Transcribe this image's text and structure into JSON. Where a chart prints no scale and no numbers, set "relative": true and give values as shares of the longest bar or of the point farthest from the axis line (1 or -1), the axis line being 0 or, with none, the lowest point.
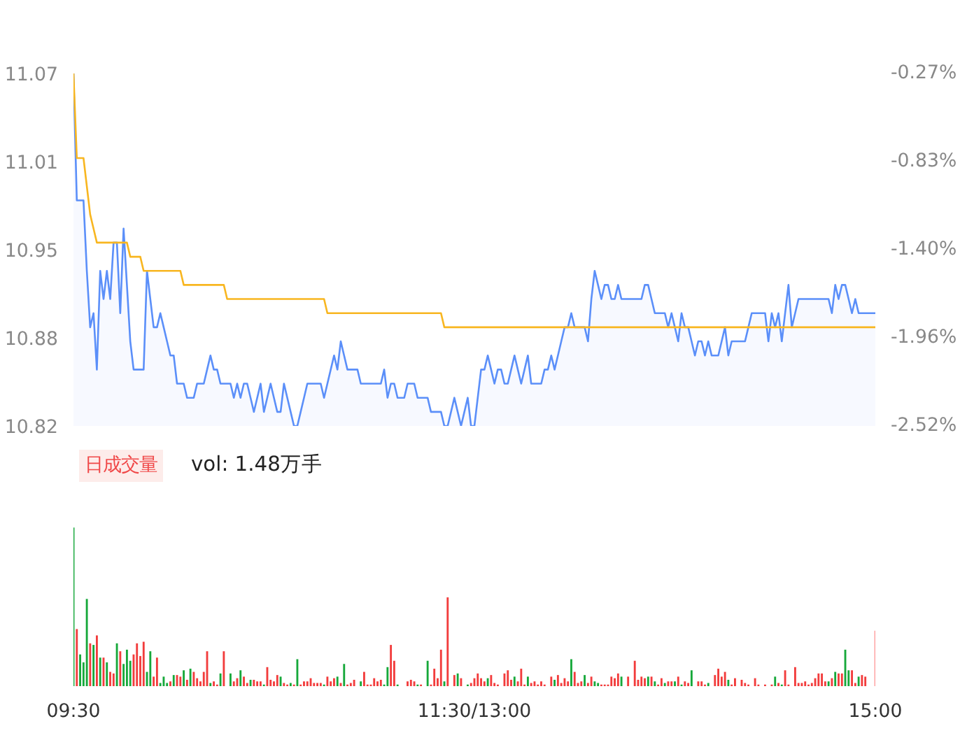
{
  "chart_data": [
    {
      "type": "area",
      "ylim": [
        10.82,
        11.07
      ],
      "categories": [
        null,
        null,
        null,
        null,
        null,
        null,
        null,
        null,
        null,
        null,
        null,
        null,
        null,
        null,
        null,
        null,
        null,
        null,
        null,
        null,
        null,
        null,
        null,
        null,
        null,
        null,
        null,
        null,
        null,
        null,
        null,
        null,
        null,
        null,
        null,
        null,
        null,
        null,
        null,
        null,
        null,
        null,
        null,
        null,
        null,
        null,
        null,
        null,
        null,
        null,
        null,
        null,
        null,
        null,
        null,
        null,
        null,
        null,
        null,
        null,
        null,
        null,
        null,
        null,
        null,
        null,
        null,
        null,
        null,
        null,
        null,
        null,
        null,
        null,
        null,
        null,
        null,
        null,
        null,
        null,
        null,
        null,
        null,
        null,
        null,
        null,
        null,
        null,
        null,
        null,
        null,
        null,
        null,
        null,
        null,
        null,
        null,
        null,
        null,
        null,
        null,
        null,
        null,
        null,
        null,
        null,
        null,
        null,
        null,
        null,
        null,
        null,
        null,
        null,
        null,
        null,
        null,
        null,
        null,
        null,
        null,
        null,
        null,
        null,
        null,
        null,
        null,
        null,
        null,
        null,
        null,
        null,
        null,
        null,
        null,
        null,
        null,
        null,
        null,
        null,
        null,
        null,
        null,
        null,
        null,
        null,
        null,
        null,
        null,
        null,
        null,
        null,
        null,
        null,
        null,
        null,
        null,
        null,
        null,
        null,
        null,
        null,
        null,
        null,
        null,
        null,
        null,
        null,
        null,
        null,
        null,
        null,
        null,
        null,
        null,
        null,
        null,
        null,
        null,
        null,
        null,
        null,
        null,
        null,
        null,
        null,
        null,
        null,
        null,
        null,
        null,
        null,
        null,
        null,
        null,
        null,
        null,
        null,
        null,
        null,
        null,
        null,
        null,
        null,
        null,
        null,
        null,
        null,
        null,
        null,
        null,
        null,
        null,
        null,
        null,
        null,
        null,
        null,
        null,
        null,
        null,
        null,
        null,
        null,
        null,
        null,
        null,
        null,
        null,
        null,
        null,
        null,
        null,
        null,
        null,
        null,
        null,
        null,
        null,
        null,
        null
      ],
      "yticks": [
        11.07,
        {
          "value": 11.0075,
          "label": "11.01"
        },
        {
          "value": 10.945,
          "label": "10.95"
        },
        {
          "value": 10.8825,
          "label": "10.88"
        },
        10.82
      ],
      "y2lim": [
        -2.52,
        -0.27
      ],
      "y2ticks": [
        {
          "value": -0.27,
          "label": "-0.27%"
        },
        {
          "value": -0.8325,
          "label": "-0.83%"
        },
        {
          "value": -1.395,
          "label": "-1.40%"
        },
        {
          "value": -1.9575,
          "label": "-1.96%"
        },
        {
          "value": -2.52,
          "label": "-2.52%"
        }
      ],
      "series": [
        {
          "type": "area",
          "color": "#5b8ff9",
          "values": [
            11.07,
            10.98,
            10.98,
            10.98,
            10.93,
            10.89,
            10.9,
            10.86,
            10.93,
            10.91,
            10.93,
            10.91,
            10.95,
            10.95,
            10.9,
            10.96,
            10.92,
            10.88,
            10.86,
            10.86,
            10.86,
            10.86,
            10.93,
            10.91,
            10.89,
            10.89,
            10.9,
            10.89,
            10.88,
            10.87,
            10.87,
            10.85,
            10.85,
            10.85,
            10.84,
            10.84,
            10.84,
            10.85,
            10.85,
            10.85,
            10.86,
            10.87,
            10.86,
            10.86,
            10.85,
            10.85,
            10.85,
            10.85,
            10.84,
            10.85,
            10.84,
            10.85,
            10.85,
            10.84,
            10.83,
            10.84,
            10.85,
            10.83,
            10.84,
            10.85,
            10.84,
            10.83,
            10.83,
            10.85,
            10.84,
            10.83,
            10.82,
            10.82,
            10.83,
            10.84,
            10.85,
            10.85,
            10.85,
            10.85,
            10.85,
            10.84,
            10.85,
            10.86,
            10.87,
            10.86,
            10.88,
            10.87,
            10.86,
            10.86,
            10.86,
            10.86,
            10.85,
            10.85,
            10.85,
            10.85,
            10.85,
            10.85,
            10.85,
            10.86,
            10.84,
            10.85,
            10.85,
            10.84,
            10.84,
            10.84,
            10.85,
            10.85,
            10.85,
            10.84,
            10.84,
            10.84,
            10.84,
            10.83,
            10.83,
            10.83,
            10.83,
            10.82,
            10.82,
            10.83,
            10.84,
            10.83,
            10.82,
            10.83,
            10.84,
            10.82,
            10.82,
            10.84,
            10.86,
            10.86,
            10.87,
            10.86,
            10.85,
            10.86,
            10.86,
            10.85,
            10.85,
            10.86,
            10.87,
            10.86,
            10.85,
            10.86,
            10.87,
            10.85,
            10.85,
            10.85,
            10.85,
            10.86,
            10.86,
            10.87,
            10.86,
            10.87,
            10.88,
            10.89,
            10.89,
            10.9,
            10.89,
            10.89,
            10.89,
            10.89,
            10.88,
            10.91,
            10.93,
            10.92,
            10.91,
            10.92,
            10.92,
            10.91,
            10.91,
            10.92,
            10.91,
            10.91,
            10.91,
            10.91,
            10.91,
            10.91,
            10.91,
            10.92,
            10.92,
            10.91,
            10.9,
            10.9,
            10.9,
            10.9,
            10.89,
            10.9,
            10.89,
            10.88,
            10.9,
            10.89,
            10.89,
            10.88,
            10.87,
            10.88,
            10.88,
            10.87,
            10.88,
            10.87,
            10.87,
            10.87,
            10.88,
            10.89,
            10.87,
            10.88,
            10.88,
            10.88,
            10.88,
            10.88,
            10.89,
            10.9,
            10.9,
            10.9,
            10.9,
            10.9,
            10.88,
            10.9,
            10.89,
            10.9,
            10.88,
            10.9,
            10.92,
            10.89,
            10.9,
            10.91,
            10.91,
            10.91,
            10.91,
            10.91,
            10.91,
            10.91,
            10.91,
            10.91,
            10.91,
            10.9,
            10.92,
            10.91,
            10.92,
            10.92,
            10.91,
            10.9,
            10.91,
            10.9,
            10.9,
            10.9,
            10.9,
            10.9,
            10.9
          ]
        },
        {
          "type": "line",
          "color": "#f8b620",
          "values": [
            11.07,
            11.01,
            11.01,
            11.01,
            10.99,
            10.97,
            10.96,
            10.95,
            10.95,
            10.95,
            10.95,
            10.95,
            10.95,
            10.95,
            10.95,
            10.95,
            10.95,
            10.94,
            10.94,
            10.94,
            10.94,
            10.93,
            10.93,
            10.93,
            10.93,
            10.93,
            10.93,
            10.93,
            10.93,
            10.93,
            10.93,
            10.93,
            10.93,
            10.92,
            10.92,
            10.92,
            10.92,
            10.92,
            10.92,
            10.92,
            10.92,
            10.92,
            10.92,
            10.92,
            10.92,
            10.92,
            10.91,
            10.91,
            10.91,
            10.91,
            10.91,
            10.91,
            10.91,
            10.91,
            10.91,
            10.91,
            10.91,
            10.91,
            10.91,
            10.91,
            10.91,
            10.91,
            10.91,
            10.91,
            10.91,
            10.91,
            10.91,
            10.91,
            10.91,
            10.91,
            10.91,
            10.91,
            10.91,
            10.91,
            10.91,
            10.91,
            10.9,
            10.9,
            10.9,
            10.9,
            10.9,
            10.9,
            10.9,
            10.9,
            10.9,
            10.9,
            10.9,
            10.9,
            10.9,
            10.9,
            10.9,
            10.9,
            10.9,
            10.9,
            10.9,
            10.9,
            10.9,
            10.9,
            10.9,
            10.9,
            10.9,
            10.9,
            10.9,
            10.9,
            10.9,
            10.9,
            10.9,
            10.9,
            10.9,
            10.9,
            10.9,
            10.89,
            10.89,
            10.89,
            10.89,
            10.89,
            10.89,
            10.89,
            10.89,
            10.89,
            10.89,
            10.89,
            10.89,
            10.89,
            10.89,
            10.89,
            10.89,
            10.89,
            10.89,
            10.89,
            10.89,
            10.89,
            10.89,
            10.89,
            10.89,
            10.89,
            10.89,
            10.89,
            10.89,
            10.89,
            10.89,
            10.89,
            10.89,
            10.89,
            10.89,
            10.89,
            10.89,
            10.89,
            10.89,
            10.89,
            10.89,
            10.89,
            10.89,
            10.89,
            10.89,
            10.89,
            10.89,
            10.89,
            10.89,
            10.89,
            10.89,
            10.89,
            10.89,
            10.89,
            10.89,
            10.89,
            10.89,
            10.89,
            10.89,
            10.89,
            10.89,
            10.89,
            10.89,
            10.89,
            10.89,
            10.89,
            10.89,
            10.89,
            10.89,
            10.89,
            10.89,
            10.89,
            10.89,
            10.89,
            10.89,
            10.89,
            10.89,
            10.89,
            10.89,
            10.89,
            10.89,
            10.89,
            10.89,
            10.89,
            10.89,
            10.89,
            10.89,
            10.89,
            10.89,
            10.89,
            10.89,
            10.89,
            10.89,
            10.89,
            10.89,
            10.89,
            10.89,
            10.89,
            10.89,
            10.89,
            10.89,
            10.89,
            10.89,
            10.89,
            10.89,
            10.89,
            10.89,
            10.89,
            10.89,
            10.89,
            10.89,
            10.89,
            10.89,
            10.89,
            10.89,
            10.89,
            10.89,
            10.89,
            10.89,
            10.89,
            10.89,
            10.89,
            10.89,
            10.89,
            10.89,
            10.89,
            10.89,
            10.89,
            10.89,
            10.89,
            10.89
          ]
        }
      ]
    },
    {
      "type": "bar",
      "relative": true,
      "categories": [
        "09:30",
        null,
        null,
        null,
        null,
        null,
        null,
        null,
        null,
        null,
        null,
        null,
        null,
        null,
        null,
        null,
        null,
        null,
        null,
        null,
        null,
        null,
        null,
        null,
        null,
        null,
        null,
        null,
        null,
        null,
        null,
        null,
        null,
        null,
        null,
        null,
        null,
        null,
        null,
        null,
        null,
        null,
        null,
        null,
        null,
        null,
        null,
        null,
        null,
        null,
        null,
        null,
        null,
        null,
        null,
        null,
        null,
        null,
        null,
        null,
        null,
        null,
        null,
        null,
        null,
        null,
        null,
        null,
        null,
        null,
        null,
        null,
        null,
        null,
        null,
        null,
        null,
        null,
        null,
        null,
        null,
        null,
        null,
        null,
        null,
        null,
        null,
        null,
        null,
        null,
        null,
        null,
        null,
        null,
        null,
        null,
        null,
        null,
        null,
        null,
        null,
        null,
        null,
        null,
        null,
        null,
        null,
        null,
        null,
        null,
        null,
        null,
        null,
        null,
        null,
        null,
        null,
        null,
        null,
        null,
        "11:30/13:00",
        null,
        null,
        null,
        null,
        null,
        null,
        null,
        null,
        null,
        null,
        null,
        null,
        null,
        null,
        null,
        null,
        null,
        null,
        null,
        null,
        null,
        null,
        null,
        null,
        null,
        null,
        null,
        null,
        null,
        null,
        null,
        null,
        null,
        null,
        null,
        null,
        null,
        null,
        null,
        null,
        null,
        null,
        null,
        null,
        null,
        null,
        null,
        null,
        null,
        null,
        null,
        null,
        null,
        null,
        null,
        null,
        null,
        null,
        null,
        null,
        null,
        null,
        null,
        null,
        null,
        null,
        null,
        null,
        null,
        null,
        null,
        null,
        null,
        null,
        null,
        null,
        null,
        null,
        null,
        null,
        null,
        null,
        null,
        null,
        null,
        null,
        null,
        null,
        null,
        null,
        null,
        null,
        null,
        null,
        null,
        null,
        null,
        null,
        null,
        null,
        null,
        null,
        null,
        null,
        null,
        null,
        null,
        null,
        null,
        null,
        null,
        null,
        null,
        null,
        null,
        null,
        null,
        null,
        null,
        "15:00"
      ],
      "annotations": [
        "日成交量",
        "vol: 1.48万手"
      ],
      "values": [
        1.0,
        0.36,
        0.2,
        0.15,
        0.55,
        0.27,
        0.26,
        0.32,
        0.18,
        0.18,
        0.15,
        0.09,
        0.08,
        0.27,
        0.22,
        0.14,
        0.23,
        0.16,
        0.2,
        0.27,
        0.19,
        0.28,
        0.09,
        0.22,
        0.06,
        0.18,
        0.02,
        0.06,
        0.02,
        0.03,
        0.07,
        0.07,
        0.06,
        0.1,
        0.04,
        0.11,
        0.09,
        0.05,
        0.03,
        0.09,
        0.22,
        0.02,
        0.03,
        0.01,
        0.08,
        0.22,
        null,
        0.08,
        0.03,
        0.05,
        0.1,
        0.06,
        0.02,
        0.04,
        0.04,
        0.03,
        0.03,
        0.01,
        0.12,
        0.04,
        0.03,
        0.07,
        0.06,
        0.02,
        0.01,
        0.02,
        0.01,
        0.17,
        0.01,
        0.03,
        0.03,
        0.05,
        0.02,
        0.02,
        0.02,
        0.01,
        0.06,
        0.03,
        0.05,
        0.06,
        0.02,
        0.14,
        0.01,
        0.02,
        0.04,
        null,
        0.03,
        0.09,
        0.01,
        0.01,
        0.05,
        0.03,
        0.04,
        0.01,
        0.12,
        0.26,
        0.16,
        0.01,
        null,
        null,
        0.03,
        0.04,
        0.03,
        0.01,
        0.01,
        null,
        0.16,
        0.01,
        0.11,
        0.05,
        0.23,
        0.03,
        0.56,
        null,
        0.07,
        0.08,
        0.05,
        null,
        0.01,
        0.02,
        0.05,
        0.08,
        0.05,
        0.03,
        0.05,
        0.07,
        0.02,
        0.01,
        null,
        0.08,
        0.1,
        0.04,
        0.06,
        0.03,
        0.11,
        0.01,
        0.06,
        0.02,
        0.03,
        0.01,
        0.03,
        0.01,
        null,
        0.06,
        0.04,
        0.07,
        0.02,
        0.05,
        0.03,
        0.17,
        0.09,
        0.02,
        0.03,
        0.07,
        0.02,
        0.06,
        0.03,
        0.02,
        0.01,
        0.01,
        0.01,
        0.06,
        0.05,
        0.08,
        0.06,
        null,
        0.06,
        null,
        0.16,
        0.04,
        0.06,
        0.05,
        0.06,
        0.06,
        0.03,
        0.01,
        0.05,
        0.02,
        0.03,
        0.03,
        0.03,
        0.06,
        0.01,
        0.03,
        0.02,
        0.1,
        null,
        0.03,
        0.03,
        0.01,
        0.02,
        null,
        0.07,
        0.11,
        0.06,
        0.09,
        0.04,
        0.01,
        0.05,
        null,
        0.04,
        0.02,
        0.01,
        null,
        0.05,
        0.01,
        null,
        0.01,
        null,
        0.01,
        0.06,
        0.02,
        0.01,
        0.1,
        0.01,
        null,
        0.12,
        0.02,
        0.02,
        0.03,
        0.01,
        0.02,
        0.05,
        0.08,
        0.08,
        0.03,
        0.03,
        0.05,
        0.09,
        0.08,
        0.08,
        0.23,
        0.1,
        0.1,
        0.02,
        0.06,
        0.07,
        0.06,
        null,
        null,
        0.35
      ],
      "colors": [
        "#16a83a",
        "#f23c3c",
        "#16a83a",
        "#16a83a",
        "#16a83a",
        "#f23c3c",
        "#16a83a",
        "#f23c3c",
        "#16a83a",
        "#f23c3c",
        "#16a83a",
        "#f23c3c",
        "#f23c3c",
        "#16a83a",
        "#f23c3c",
        "#16a83a",
        "#16a83a",
        "#16a83a",
        "#f23c3c",
        "#f23c3c",
        "#f23c3c",
        "#f23c3c",
        "#16a83a",
        "#16a83a",
        "#f23c3c",
        "#f23c3c",
        "#16a83a",
        "#16a83a",
        "#16a83a",
        "#f23c3c",
        "#16a83a",
        "#f23c3c",
        "#f23c3c",
        "#16a83a",
        "#f23c3c",
        "#16a83a",
        "#f23c3c",
        "#f23c3c",
        "#f23c3c",
        "#f23c3c",
        "#f23c3c",
        "#16a83a",
        "#f23c3c",
        "#f23c3c",
        "#16a83a",
        "#f23c3c",
        "#f23c3c",
        "#16a83a",
        "#f23c3c",
        "#f23c3c",
        "#16a83a",
        "#f23c3c",
        "#f23c3c",
        "#16a83a",
        "#f23c3c",
        "#f23c3c",
        "#f23c3c",
        "#16a83a",
        "#f23c3c",
        "#f23c3c",
        "#f23c3c",
        "#f23c3c",
        "#16a83a",
        "#f23c3c",
        "#f23c3c",
        "#16a83a",
        "#f23c3c",
        "#16a83a",
        "#f23c3c",
        "#f23c3c",
        "#f23c3c",
        "#f23c3c",
        "#f23c3c",
        "#f23c3c",
        "#f23c3c",
        "#16a83a",
        "#f23c3c",
        "#f23c3c",
        "#f23c3c",
        "#16a83a",
        "#f23c3c",
        "#16a83a",
        "#f23c3c",
        "#f23c3c",
        "#f23c3c",
        "#f23c3c",
        "#16a83a",
        "#f23c3c",
        "#f23c3c",
        "#f23c3c",
        "#f23c3c",
        "#f23c3c",
        "#f23c3c",
        "#16a83a",
        "#16a83a",
        "#f23c3c",
        "#f23c3c",
        "#16a83a",
        "#f23c3c",
        "#f23c3c",
        "#f23c3c",
        "#f23c3c",
        "#f23c3c",
        "#16a83a",
        "#f23c3c",
        "#f23c3c",
        "#16a83a",
        "#f23c3c",
        "#f23c3c",
        "#f23c3c",
        "#f23c3c",
        "#16a83a",
        "#f23c3c",
        "#f23c3c",
        "#f23c3c",
        "#16a83a",
        "#f23c3c",
        "#f23c3c",
        "#16a83a",
        "#f23c3c",
        "#f23c3c",
        "#f23c3c",
        "#f23c3c",
        "#f23c3c",
        "#16a83a",
        "#f23c3c",
        "#f23c3c",
        "#f23c3c",
        "#f23c3c",
        "#f23c3c",
        "#f23c3c",
        "#f23c3c",
        "#16a83a",
        "#f23c3c",
        "#f23c3c",
        "#f23c3c",
        "#16a83a",
        "#f23c3c",
        "#f23c3c",
        "#f23c3c",
        "#f23c3c",
        "#f23c3c",
        "#f23c3c",
        "#f23c3c",
        "#16a83a",
        "#f23c3c",
        "#f23c3c",
        "#f23c3c",
        "#f23c3c",
        "#16a83a",
        "#f23c3c",
        "#f23c3c",
        "#f23c3c",
        "#16a83a",
        "#f23c3c",
        "#f23c3c",
        "#16a83a",
        "#16a83a",
        "#f23c3c",
        "#f23c3c",
        "#f23c3c",
        "#f23c3c",
        "#f23c3c",
        "#f23c3c",
        "#16a83a",
        "#f23c3c",
        "#f23c3c",
        "#f23c3c",
        "#f23c3c",
        "#f23c3c",
        "#f23c3c",
        "#f23c3c",
        "#16a83a",
        "#f23c3c",
        "#16a83a",
        "#f23c3c",
        "#f23c3c",
        "#16a83a",
        "#f23c3c",
        "#f23c3c",
        "#16a83a",
        "#f23c3c",
        "#16a83a",
        "#f23c3c",
        "#f23c3c",
        "#16a83a",
        "#f23c3c",
        "#f23c3c",
        "#f23c3c",
        "#f23c3c",
        "#16a83a",
        "#f23c3c",
        "#f23c3c",
        "#f23c3c",
        "#f23c3c",
        "#f23c3c",
        "#16a83a",
        "#f23c3c",
        "#f23c3c",
        "#f23c3c",
        "#f23c3c",
        "#f23c3c",
        "#f23c3c",
        "#f23c3c",
        "#f23c3c",
        "#f23c3c",
        "#f23c3c",
        "#f23c3c",
        "#f23c3c",
        "#f23c3c",
        "#16a83a",
        "#f23c3c",
        "#16a83a",
        "#f23c3c",
        "#f23c3c",
        "#f23c3c",
        "#f23c3c",
        "#f23c3c",
        "#f23c3c",
        "#f23c3c",
        "#f23c3c",
        "#f23c3c",
        "#f23c3c",
        "#f23c3c",
        "#f23c3c",
        "#f23c3c",
        "#16a83a",
        "#f23c3c",
        "#16a83a",
        "#f23c3c",
        "#f23c3c",
        "#16a83a",
        "#16a83a",
        "#f23c3c",
        "#f23c3c",
        "#16a83a",
        "#f23c3c",
        "#f23c3c",
        "#f23c3c",
        "#f23c3c",
        "#ffa0a0"
      ]
    }
  ]
}
